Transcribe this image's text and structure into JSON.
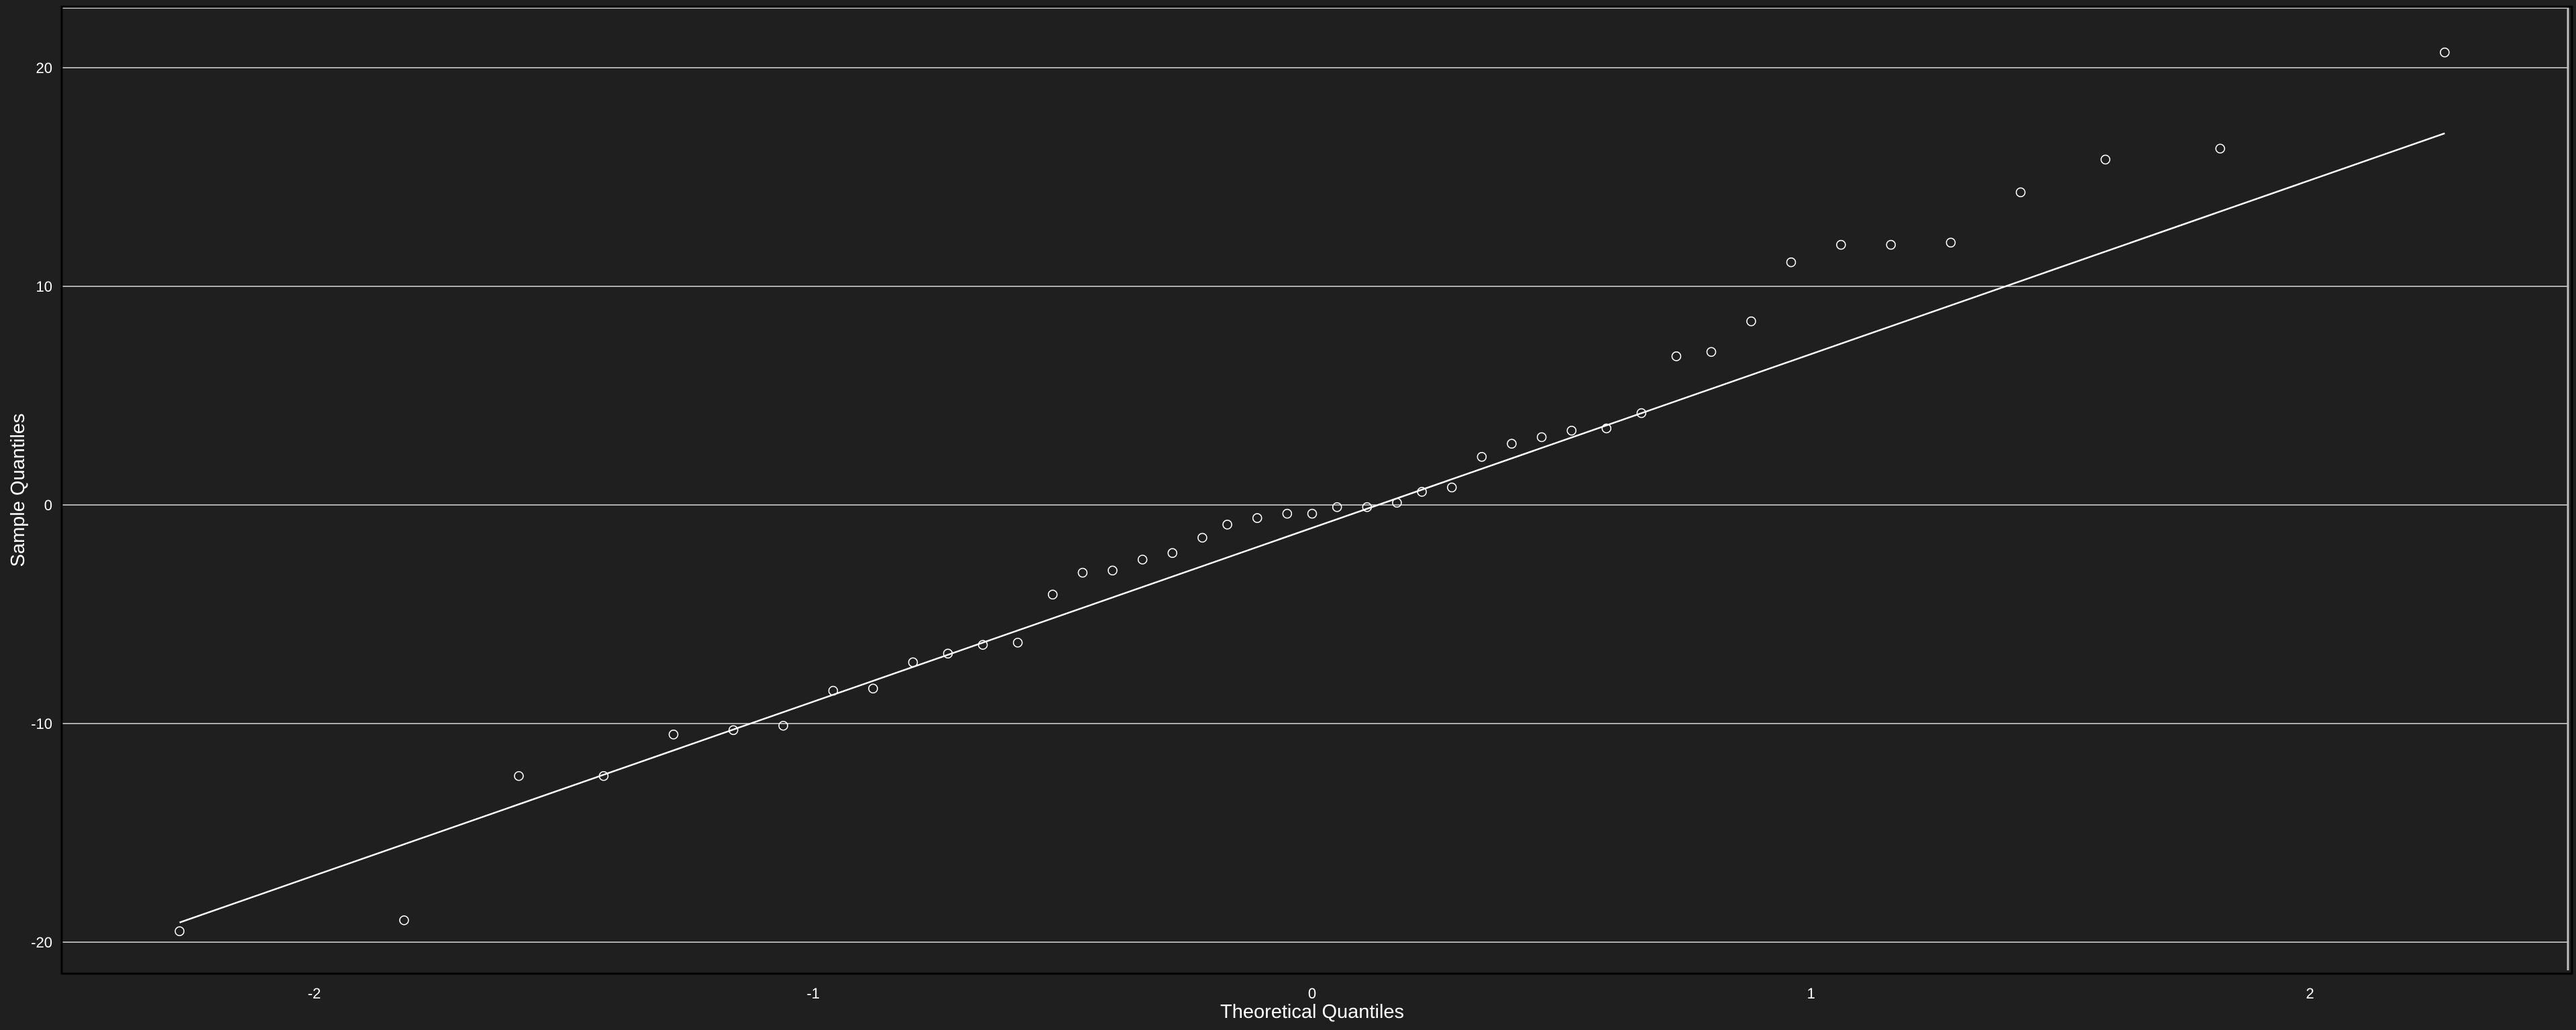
{
  "chart_data": {
    "type": "scatter",
    "title": "",
    "xlabel": "Theoretical Quantiles",
    "ylabel": "Sample Quantiles",
    "xlim": [
      -2.5,
      2.5
    ],
    "ylim": [
      -21.5,
      22.5
    ],
    "xticks": [
      -2,
      -1,
      0,
      1,
      2
    ],
    "xtick_labels": [
      "-2",
      "-1",
      "0",
      "1",
      "2"
    ],
    "yticks": [
      -20,
      -10,
      0,
      10,
      20
    ],
    "ytick_labels": [
      "-20",
      "-10",
      "0",
      "10",
      "20"
    ],
    "grid": "horizontal",
    "legend": "none",
    "colors": {
      "background": "#1f1f1f",
      "points": "#ffffff",
      "line": "#ffffff",
      "grid": "#ffffff",
      "frame": "#000000"
    },
    "series": [
      {
        "kind": "points",
        "x": [
          -2.27,
          -1.82,
          -1.59,
          -1.42,
          -1.28,
          -1.16,
          -1.06,
          -0.96,
          -0.88,
          -0.8,
          -0.73,
          -0.66,
          -0.59,
          -0.52,
          -0.46,
          -0.4,
          -0.34,
          -0.28,
          -0.22,
          -0.17,
          -0.11,
          -0.05,
          0.0,
          0.05,
          0.11,
          0.17,
          0.22,
          0.28,
          0.34,
          0.4,
          0.46,
          0.52,
          0.59,
          0.66,
          0.73,
          0.8,
          0.88,
          0.96,
          1.06,
          1.16,
          1.28,
          1.42,
          1.59,
          1.82,
          2.27
        ],
        "y": [
          -19.5,
          -19.0,
          -12.4,
          -12.4,
          -10.5,
          -10.3,
          -10.1,
          -8.5,
          -8.4,
          -7.2,
          -6.8,
          -6.4,
          -6.3,
          -4.1,
          -3.1,
          -3.0,
          -2.5,
          -2.2,
          -1.5,
          -0.9,
          -0.6,
          -0.4,
          -0.4,
          -0.1,
          -0.1,
          0.1,
          0.6,
          0.8,
          2.2,
          2.8,
          3.1,
          3.4,
          3.5,
          4.2,
          6.8,
          7.0,
          8.4,
          11.1,
          11.9,
          11.9,
          12.0,
          14.3,
          15.8,
          16.3,
          20.7
        ]
      },
      {
        "kind": "reference-line",
        "x": [
          -2.27,
          2.27
        ],
        "y": [
          -19.1,
          17.0
        ]
      }
    ]
  }
}
